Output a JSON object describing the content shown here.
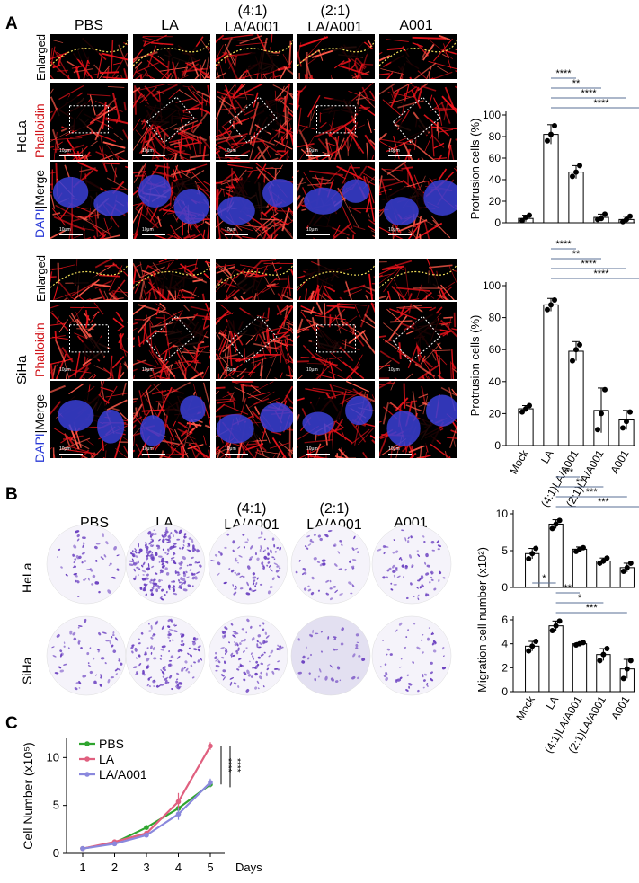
{
  "panels": {
    "a": "A",
    "b": "B",
    "c": "C"
  },
  "columns": [
    "PBS",
    "LA",
    "LA/A001",
    "LA/A001",
    "A001"
  ],
  "ratios": [
    "",
    "",
    "(4:1)",
    "(2:1)",
    ""
  ],
  "cell_lines": [
    "HeLa",
    "SiHa"
  ],
  "rows": {
    "enlarged": "Enlarged",
    "phalloidin": "Phalloidin",
    "dapi": "DAPI",
    "merge": "Merge"
  },
  "scale_bar": "10μm",
  "colors": {
    "actin": "#e8131b",
    "dapi": "#3a3fd6",
    "crystal_violet": "#6a3fc0",
    "dash": "#f5e15a"
  },
  "chart_data": [
    {
      "type": "bar",
      "panel": "A",
      "cell_line": "HeLa",
      "ylabel": "Protrusion cells (%)",
      "ylim": [
        0,
        100
      ],
      "yticks": [
        0,
        20,
        40,
        60,
        80,
        100
      ],
      "categories": [
        "Mock",
        "LA",
        "(4:1)LA/A001",
        "(2:1)LA/A001",
        "A001"
      ],
      "values": [
        4,
        82,
        47,
        5,
        3
      ],
      "errors": [
        3,
        9,
        6,
        3,
        3
      ],
      "points": [
        [
          2,
          5,
          7
        ],
        [
          76,
          82,
          90
        ],
        [
          43,
          47,
          53
        ],
        [
          3,
          4,
          8
        ],
        [
          1,
          3,
          6
        ]
      ],
      "significance": [
        {
          "from": 1,
          "to": 2,
          "label": "****"
        },
        {
          "from": 1,
          "to": 3,
          "label": "**"
        },
        {
          "from": 1,
          "to": 4,
          "label": "****"
        },
        {
          "from": 1,
          "to": 5,
          "label": "****"
        }
      ]
    },
    {
      "type": "bar",
      "panel": "A",
      "cell_line": "SiHa",
      "ylabel": "Protrusion cells (%)",
      "ylim": [
        0,
        100
      ],
      "yticks": [
        0,
        20,
        40,
        60,
        80,
        100
      ],
      "categories": [
        "Mock",
        "LA",
        "(4:1)LA/A001",
        "(2:1)LA/A001",
        "A001"
      ],
      "values": [
        23,
        88,
        59,
        22,
        16
      ],
      "errors": [
        2,
        4,
        6,
        14,
        6
      ],
      "points": [
        [
          21,
          23,
          25
        ],
        [
          85,
          88,
          91
        ],
        [
          53,
          60,
          63
        ],
        [
          10,
          20,
          35
        ],
        [
          11,
          15,
          21
        ]
      ],
      "significance": [
        {
          "from": 1,
          "to": 2,
          "label": "****"
        },
        {
          "from": 1,
          "to": 3,
          "label": "**"
        },
        {
          "from": 1,
          "to": 4,
          "label": "****"
        },
        {
          "from": 1,
          "to": 5,
          "label": "****"
        }
      ]
    },
    {
      "type": "bar",
      "panel": "B",
      "cell_line": "HeLa",
      "ylabel": "Migration cell number (x10²)",
      "ylim": [
        0,
        10
      ],
      "yticks": [
        0,
        5,
        10
      ],
      "categories": [
        "Mock",
        "LA",
        "(4:1)LA/A001",
        "(2:1)LA/A001",
        "A001"
      ],
      "values": [
        4.6,
        8.6,
        5.2,
        3.6,
        2.7
      ],
      "errors": [
        0.7,
        0.6,
        0.3,
        0.4,
        0.6
      ],
      "points": [
        [
          3.9,
          4.6,
          5.3
        ],
        [
          8.0,
          8.6,
          9.1
        ],
        [
          4.9,
          5.2,
          5.4
        ],
        [
          3.3,
          3.6,
          4.0
        ],
        [
          2.2,
          2.7,
          3.3
        ]
      ],
      "significance": [
        {
          "from": 1,
          "to": 2,
          "label": "***"
        },
        {
          "from": 1,
          "to": 3,
          "label": "**"
        },
        {
          "from": 1,
          "to": 4,
          "label": "***"
        },
        {
          "from": 1,
          "to": 5,
          "label": "***"
        }
      ]
    },
    {
      "type": "bar",
      "panel": "B",
      "cell_line": "SiHa",
      "ylabel": "",
      "ylim": [
        0,
        6
      ],
      "yticks": [
        0,
        2,
        4,
        6
      ],
      "categories": [
        "Mock",
        "LA",
        "(4:1)LA/A001",
        "(2:1)LA/A001",
        "A001"
      ],
      "values": [
        3.8,
        5.5,
        4.0,
        3.1,
        1.9
      ],
      "errors": [
        0.4,
        0.4,
        0.1,
        0.5,
        0.8
      ],
      "points": [
        [
          3.4,
          3.8,
          4.2
        ],
        [
          5.1,
          5.5,
          5.9
        ],
        [
          3.9,
          4.0,
          4.1
        ],
        [
          2.6,
          3.1,
          3.6
        ],
        [
          1.1,
          1.9,
          2.6
        ]
      ],
      "significance": [
        {
          "from": 0,
          "to": 1,
          "label": "*"
        },
        {
          "from": 1,
          "to": 2,
          "label": "**"
        },
        {
          "from": 1,
          "to": 3,
          "label": "*"
        },
        {
          "from": 1,
          "to": 4,
          "label": "***"
        }
      ]
    },
    {
      "type": "line",
      "panel": "C",
      "ylabel": "Cell Number (x10⁵)",
      "xlabel": "Days",
      "x": [
        1,
        2,
        3,
        4,
        5
      ],
      "ylim": [
        0,
        12
      ],
      "yticks": [
        0,
        5,
        10
      ],
      "series": [
        {
          "name": "PBS",
          "color": "#2fa52f",
          "values": [
            0.5,
            1.1,
            2.7,
            4.7,
            7.2
          ],
          "errors": [
            0.1,
            0.1,
            0.2,
            0.6,
            0.3
          ]
        },
        {
          "name": "LA",
          "color": "#e0607f",
          "values": [
            0.5,
            1.2,
            2.1,
            5.4,
            11.2
          ],
          "errors": [
            0.1,
            0.1,
            0.2,
            0.9,
            0.4
          ]
        },
        {
          "name": "LA/A001",
          "color": "#8a88dd",
          "values": [
            0.5,
            1.0,
            1.9,
            4.1,
            7.4
          ],
          "errors": [
            0.1,
            0.1,
            0.2,
            0.6,
            0.4
          ]
        }
      ],
      "significance": [
        "****",
        "****"
      ]
    }
  ]
}
